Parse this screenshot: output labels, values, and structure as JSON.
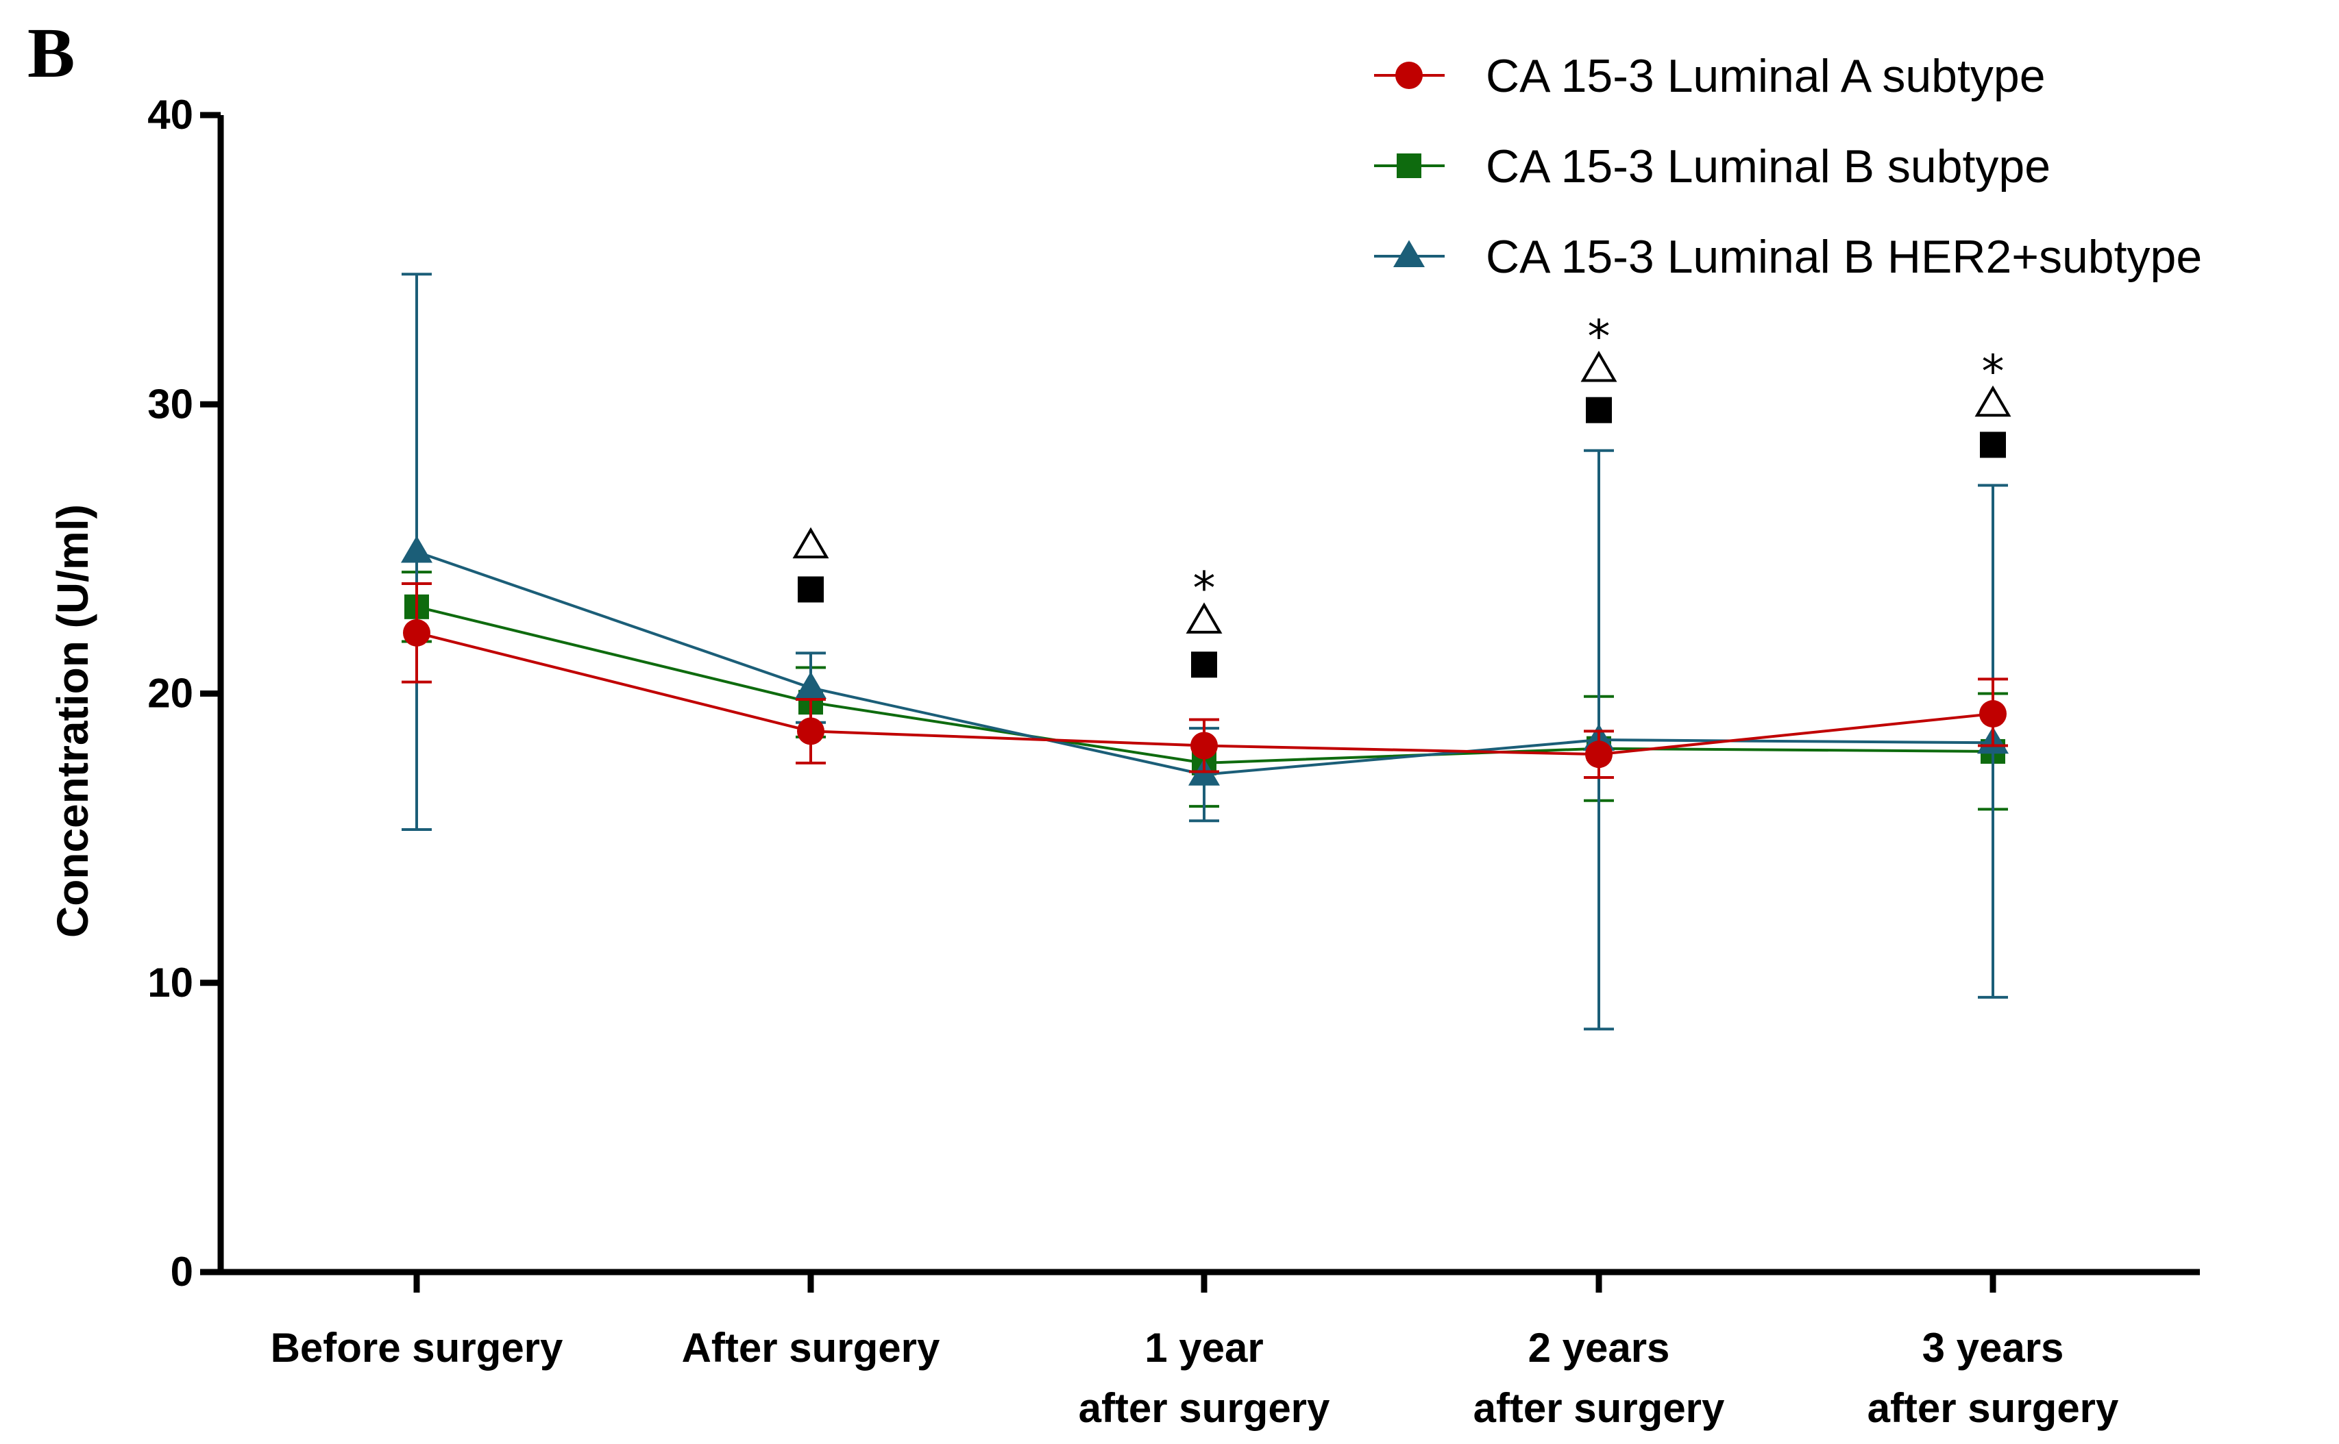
{
  "panel_label": "B",
  "chart_data": {
    "type": "line",
    "title": "",
    "xlabel": "",
    "ylabel": "Concentration  (U/ml)",
    "ylim": [
      0,
      40
    ],
    "yticks": [
      "0",
      "10",
      "20",
      "30",
      "40"
    ],
    "categories": [
      [
        "Before surgery"
      ],
      [
        "After surgery"
      ],
      [
        "1 year",
        "after surgery"
      ],
      [
        "2 years",
        "after surgery"
      ],
      [
        "3 years",
        "after surgery"
      ]
    ],
    "legend_position": "top-right",
    "series": [
      {
        "name": "CA 15-3 Luminal A subtype",
        "color": "#C00000",
        "marker": "circle",
        "values": [
          22.1,
          18.7,
          18.2,
          17.9,
          19.3
        ],
        "err_low": [
          20.4,
          17.6,
          17.3,
          17.1,
          18.2
        ],
        "err_high": [
          23.8,
          19.8,
          19.1,
          18.7,
          20.5
        ]
      },
      {
        "name": "CA 15-3 Luminal B subtype",
        "color": "#0E6B0E",
        "marker": "square",
        "values": [
          23.0,
          19.7,
          17.6,
          18.1,
          18.0
        ],
        "err_low": [
          21.8,
          18.5,
          16.1,
          16.3,
          16.0
        ],
        "err_high": [
          24.2,
          20.9,
          19.1,
          19.9,
          20.0
        ]
      },
      {
        "name": "CA 15-3 Luminal B HER2+subtype",
        "color": "#1B5E78",
        "marker": "triangle",
        "values": [
          24.9,
          20.2,
          17.2,
          18.4,
          18.3
        ],
        "err_low": [
          15.3,
          19.0,
          15.6,
          8.4,
          9.5
        ],
        "err_high": [
          34.5,
          21.4,
          18.8,
          28.4,
          27.2
        ]
      }
    ],
    "significance_markers": [
      {
        "category_index": 1,
        "square_y": 23.6,
        "triangle_y": 25.1,
        "star_y": null,
        "star": ""
      },
      {
        "category_index": 2,
        "square_y": 21.0,
        "triangle_y": 22.5,
        "star_y": 24.0,
        "star": "*"
      },
      {
        "category_index": 3,
        "square_y": 29.8,
        "triangle_y": 31.2,
        "star_y": 32.7,
        "star": "*"
      },
      {
        "category_index": 4,
        "square_y": 28.6,
        "triangle_y": 30.0,
        "star_y": 31.5,
        "star": "*"
      }
    ]
  }
}
